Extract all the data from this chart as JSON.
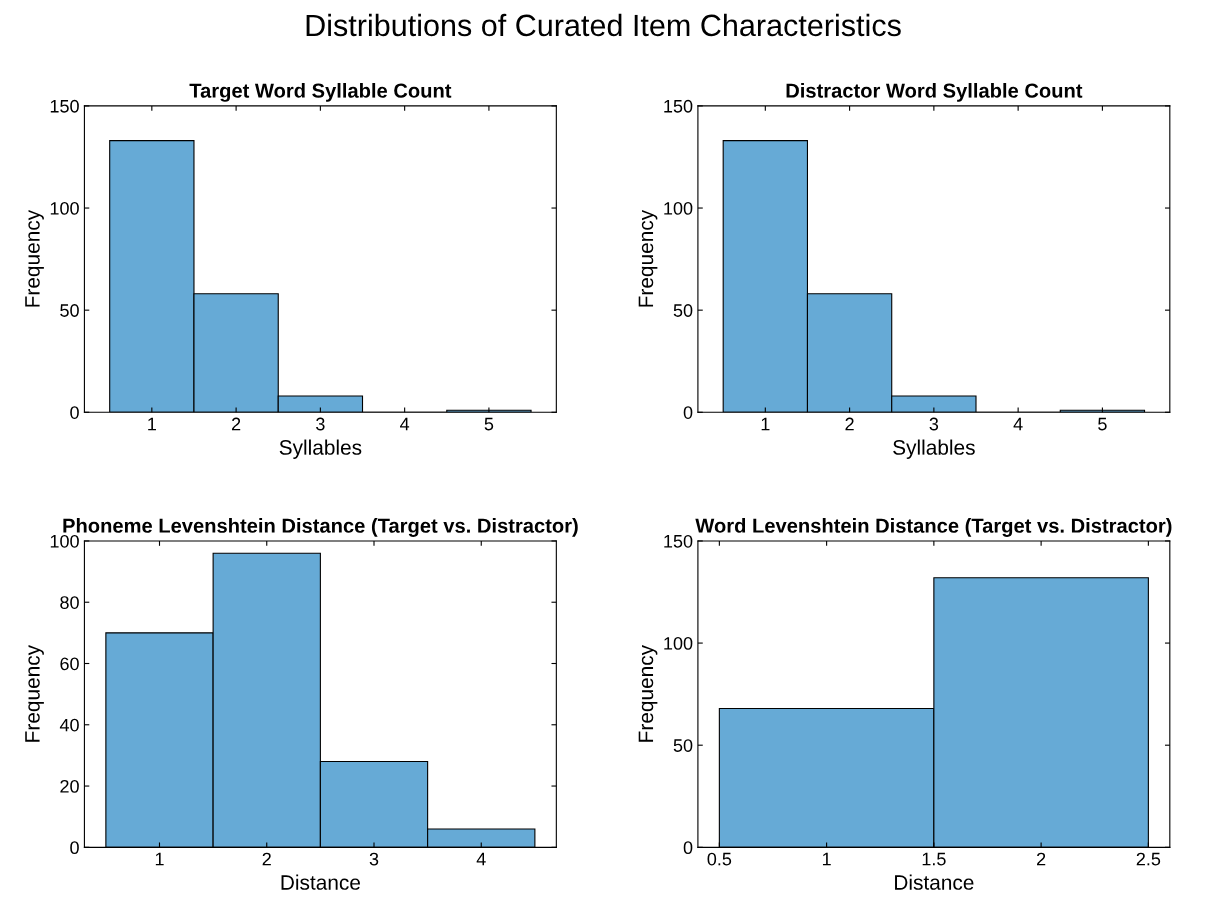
{
  "chart_data": [
    {
      "type": "histogram",
      "title": "Target Word Syllable Count",
      "xlabel": "Syllables",
      "ylabel": "Frequency",
      "bins": [
        0.5,
        1.5,
        2.5,
        3.5,
        4.5,
        5.5
      ],
      "values": [
        133,
        58,
        8,
        0,
        1
      ],
      "color": "#66aad6",
      "xlim": [
        0.2,
        5.8
      ],
      "xticks": [
        1,
        2,
        3,
        4,
        5
      ],
      "ylim": [
        0,
        150
      ],
      "yticks": [
        0,
        50,
        100,
        150
      ],
      "grid": false,
      "legend": false,
      "annotations": [
        "Distributions of Curated Item Characteristics"
      ]
    },
    {
      "type": "histogram",
      "title": "Distractor Word Syllable Count",
      "xlabel": "Syllables",
      "ylabel": "Frequency",
      "bins": [
        0.5,
        1.5,
        2.5,
        3.5,
        4.5,
        5.5
      ],
      "values": [
        133,
        58,
        8,
        0,
        1
      ],
      "color": "#66aad6",
      "xlim": [
        0.2,
        5.8
      ],
      "xticks": [
        1,
        2,
        3,
        4,
        5
      ],
      "ylim": [
        0,
        150
      ],
      "yticks": [
        0,
        50,
        100,
        150
      ],
      "grid": false,
      "legend": false
    },
    {
      "type": "histogram",
      "title": "Phoneme Levenshtein Distance (Target vs. Distractor)",
      "xlabel": "Distance",
      "ylabel": "Frequency",
      "bins": [
        0.5,
        1.5,
        2.5,
        3.5,
        4.5
      ],
      "values": [
        70,
        96,
        28,
        6
      ],
      "color": "#66aad6",
      "xlim": [
        0.3,
        4.7
      ],
      "xticks": [
        1,
        2,
        3,
        4
      ],
      "ylim": [
        0,
        100
      ],
      "yticks": [
        0,
        20,
        40,
        60,
        80,
        100
      ],
      "grid": false,
      "legend": false
    },
    {
      "type": "histogram",
      "title": "Word Levenshtein Distance (Target vs. Distractor)",
      "xlabel": "Distance",
      "ylabel": "Frequency",
      "bins": [
        0.5,
        1.5,
        2.5
      ],
      "values": [
        68,
        132
      ],
      "color": "#66aad6",
      "xlim": [
        0.4,
        2.6
      ],
      "xticks": [
        0.5,
        1,
        1.5,
        2,
        2.5
      ],
      "ylim": [
        0,
        150
      ],
      "yticks": [
        0,
        50,
        100,
        150
      ],
      "grid": false,
      "legend": false
    }
  ]
}
